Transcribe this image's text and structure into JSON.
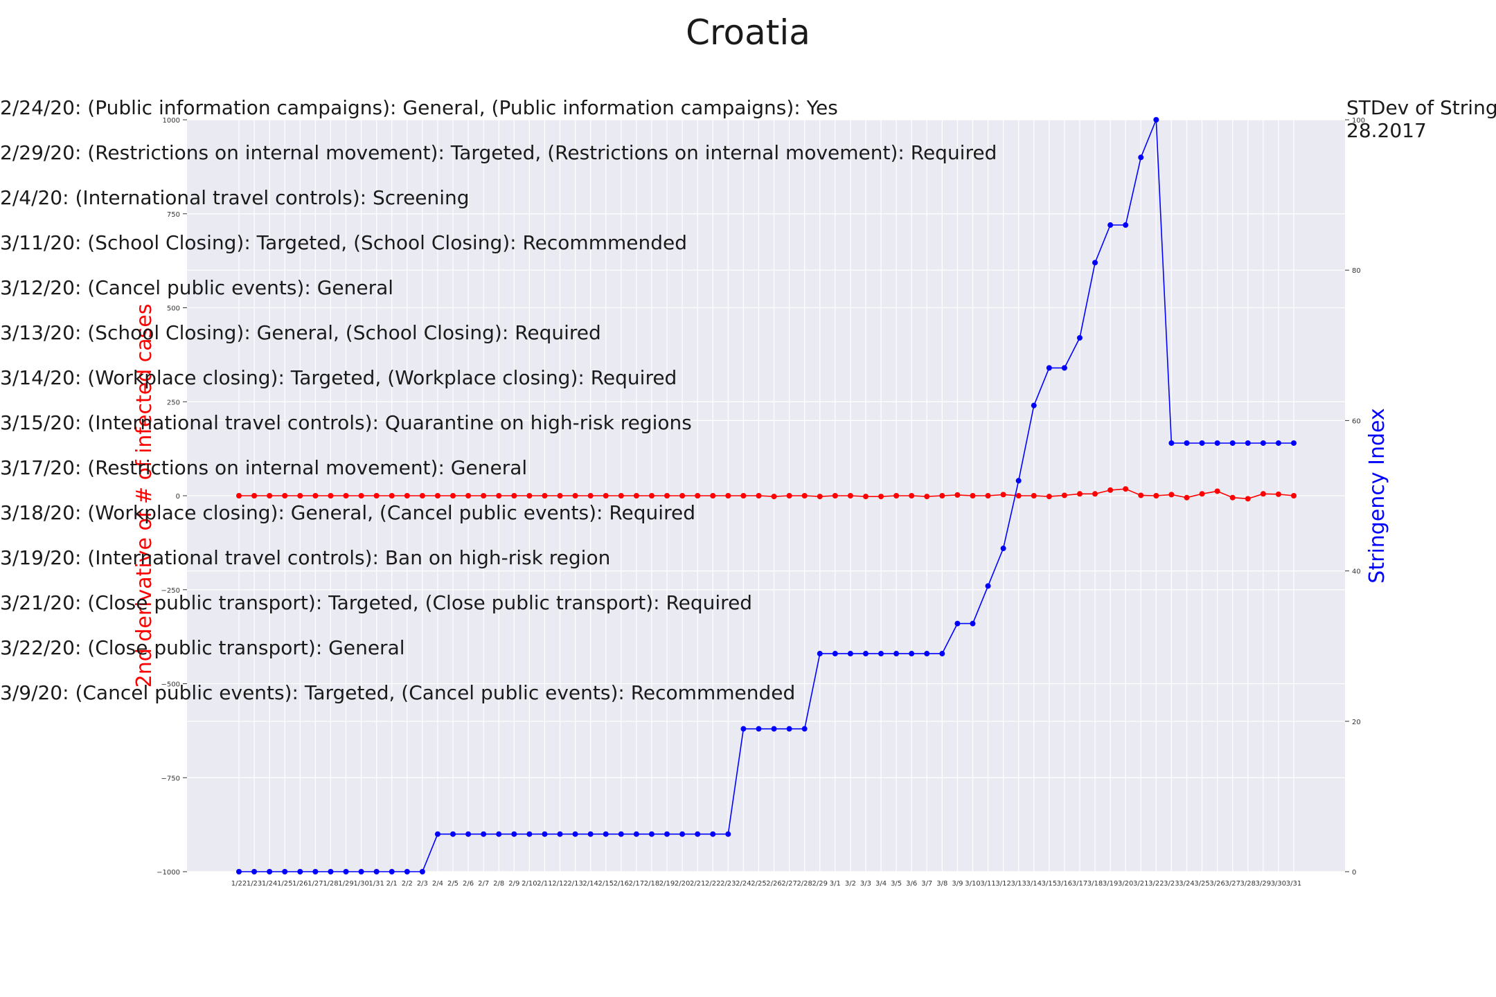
{
  "chart_data": {
    "type": "line",
    "title": "Croatia",
    "left_axis": {
      "label": "2nd derivative of # of infected cases",
      "ylim": [
        -1000,
        1000
      ],
      "ticks": [
        -1000,
        -750,
        -500,
        -250,
        0,
        250,
        500,
        750,
        1000
      ],
      "tick_labels": [
        "−1000",
        "−750",
        "−500",
        "−250",
        "0",
        "250",
        "500",
        "750",
        "1000"
      ],
      "color": "#ff0000"
    },
    "right_axis": {
      "label": "Stringency Index",
      "ylim": [
        0,
        100
      ],
      "ticks": [
        0,
        20,
        40,
        60,
        80,
        100
      ],
      "tick_labels": [
        "0",
        "20",
        "40",
        "60",
        "80",
        "100"
      ],
      "color": "#0000ff"
    },
    "x": [
      "1/22",
      "1/23",
      "1/24",
      "1/25",
      "1/26",
      "1/27",
      "1/28",
      "1/29",
      "1/30",
      "1/31",
      "2/1",
      "2/2",
      "2/3",
      "2/4",
      "2/5",
      "2/6",
      "2/7",
      "2/8",
      "2/9",
      "2/10",
      "2/11",
      "2/12",
      "2/13",
      "2/14",
      "2/15",
      "2/16",
      "2/17",
      "2/18",
      "2/19",
      "2/20",
      "2/21",
      "2/22",
      "2/23",
      "2/24",
      "2/25",
      "2/26",
      "2/27",
      "2/28",
      "2/29",
      "3/1",
      "3/2",
      "3/3",
      "3/4",
      "3/5",
      "3/6",
      "3/7",
      "3/8",
      "3/9",
      "3/10",
      "3/11",
      "3/12",
      "3/13",
      "3/14",
      "3/15",
      "3/16",
      "3/17",
      "3/18",
      "3/19",
      "3/20",
      "3/21",
      "3/22",
      "3/23",
      "3/24",
      "3/25",
      "3/26",
      "3/27",
      "3/28",
      "3/29",
      "3/30",
      "3/31"
    ],
    "series": [
      {
        "axis": "left",
        "color": "#ff0000",
        "values": [
          0,
          0,
          0,
          0,
          0,
          0,
          0,
          0,
          0,
          0,
          0,
          0,
          0,
          0,
          0,
          0,
          0,
          0,
          0,
          0,
          0,
          0,
          0,
          0,
          0,
          0,
          0,
          0,
          0,
          0,
          0,
          0,
          0,
          0,
          0,
          -2,
          0,
          0,
          -2,
          0,
          0,
          -2,
          -2,
          0,
          0,
          -2,
          0,
          2,
          0,
          0,
          3,
          0,
          0,
          -2,
          1,
          5,
          5,
          15,
          18,
          1,
          0,
          3,
          -5,
          5,
          12,
          -5,
          -8,
          5,
          4,
          0
        ]
      },
      {
        "axis": "right",
        "color": "#0000ff",
        "values": [
          0,
          0,
          0,
          0,
          0,
          0,
          0,
          0,
          0,
          0,
          0,
          0,
          0,
          5,
          5,
          5,
          5,
          5,
          5,
          5,
          5,
          5,
          5,
          5,
          5,
          5,
          5,
          5,
          5,
          5,
          5,
          5,
          5,
          19,
          19,
          19,
          19,
          19,
          29,
          29,
          29,
          29,
          29,
          29,
          29,
          29,
          29,
          33,
          33,
          38,
          43,
          52,
          62,
          67,
          67,
          71,
          81,
          86,
          86,
          95,
          100,
          57,
          57,
          57,
          57,
          57,
          57,
          57,
          57,
          57
        ]
      }
    ],
    "grid": true,
    "annotations": [
      "2/24/20: (Public information campaigns): General, (Public information campaigns): Yes",
      "2/29/20: (Restrictions on internal movement): Targeted, (Restrictions on internal movement): Required",
      "2/4/20: (International travel controls): Screening",
      "3/11/20: (School Closing): Targeted, (School Closing): Recommmended",
      "3/12/20: (Cancel public events): General",
      "3/13/20: (School Closing): General, (School Closing): Required",
      "3/14/20: (Workplace closing): Targeted, (Workplace closing): Required",
      "3/15/20: (International travel controls): Quarantine on high-risk regions",
      "3/17/20: (Restrictions on internal movement): General",
      "3/18/20: (Workplace closing): General, (Cancel public events): Required",
      "3/19/20: (International travel controls): Ban on high-risk region",
      "3/21/20: (Close public transport): Targeted, (Close public transport): Required",
      "3/22/20: (Close public transport): General",
      "3/9/20: (Cancel public events): Targeted, (Cancel public events): Recommmended"
    ],
    "side_text": [
      "STDev of Stringe",
      "28.2017"
    ]
  }
}
